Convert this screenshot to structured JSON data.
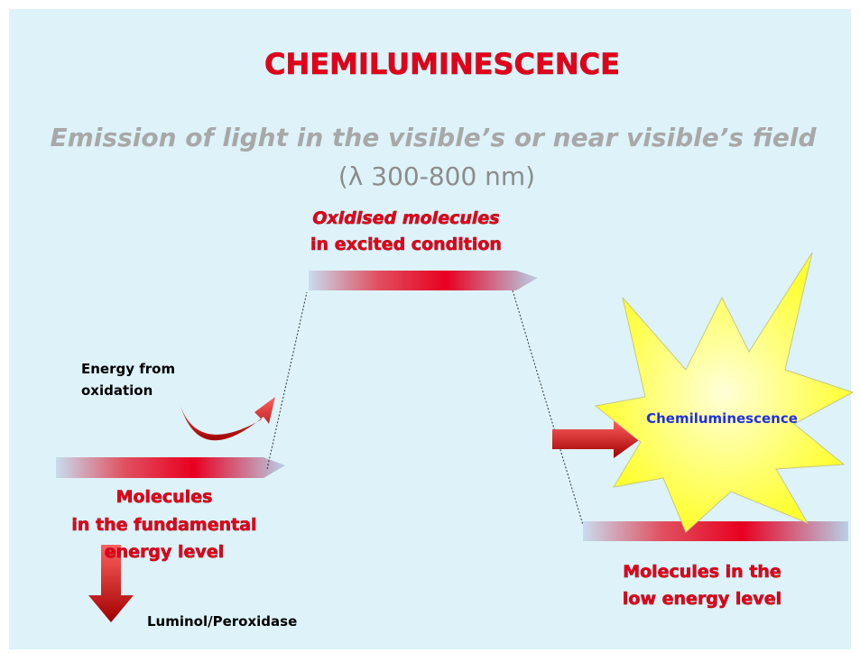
{
  "title": "CHEMILUMINESCENCE",
  "subtitle": "Emission of light in the visible’s or near visible’s field",
  "range": "(λ 300-800 nm)",
  "nodes": [
    {
      "label": [
        "Oxidised molecules",
        "in excited condition"
      ]
    },
    {
      "label": [
        "Molecules",
        "in the fundamental",
        "energy level"
      ]
    },
    {
      "label": [
        "Molecules in the",
        "low energy level"
      ]
    }
  ],
  "energy_label": [
    "Energy from",
    "oxidation"
  ],
  "emission_label": "Chemiluminescence",
  "reagent_label": "Luminol/Peroxidase"
}
